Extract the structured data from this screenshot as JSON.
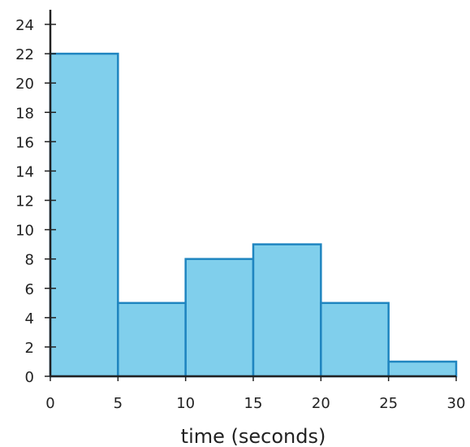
{
  "chart_data": {
    "type": "bar",
    "subtype": "histogram",
    "bins": [
      {
        "start": 0,
        "end": 5,
        "value": 22
      },
      {
        "start": 5,
        "end": 10,
        "value": 5
      },
      {
        "start": 10,
        "end": 15,
        "value": 8
      },
      {
        "start": 15,
        "end": 20,
        "value": 9
      },
      {
        "start": 20,
        "end": 25,
        "value": 5
      },
      {
        "start": 25,
        "end": 30,
        "value": 1
      }
    ],
    "xlabel": "time (seconds)",
    "ylabel": "",
    "xlim": [
      0,
      30
    ],
    "ylim": [
      0,
      24
    ],
    "x_ticks": [
      0,
      5,
      10,
      15,
      20,
      25,
      30
    ],
    "y_ticks": [
      0,
      2,
      4,
      6,
      8,
      10,
      12,
      14,
      16,
      18,
      20,
      22,
      24
    ],
    "grid": false,
    "colors": {
      "bar_fill": "#80cfec",
      "bar_stroke": "#1f85c0",
      "axis": "#222222"
    }
  }
}
